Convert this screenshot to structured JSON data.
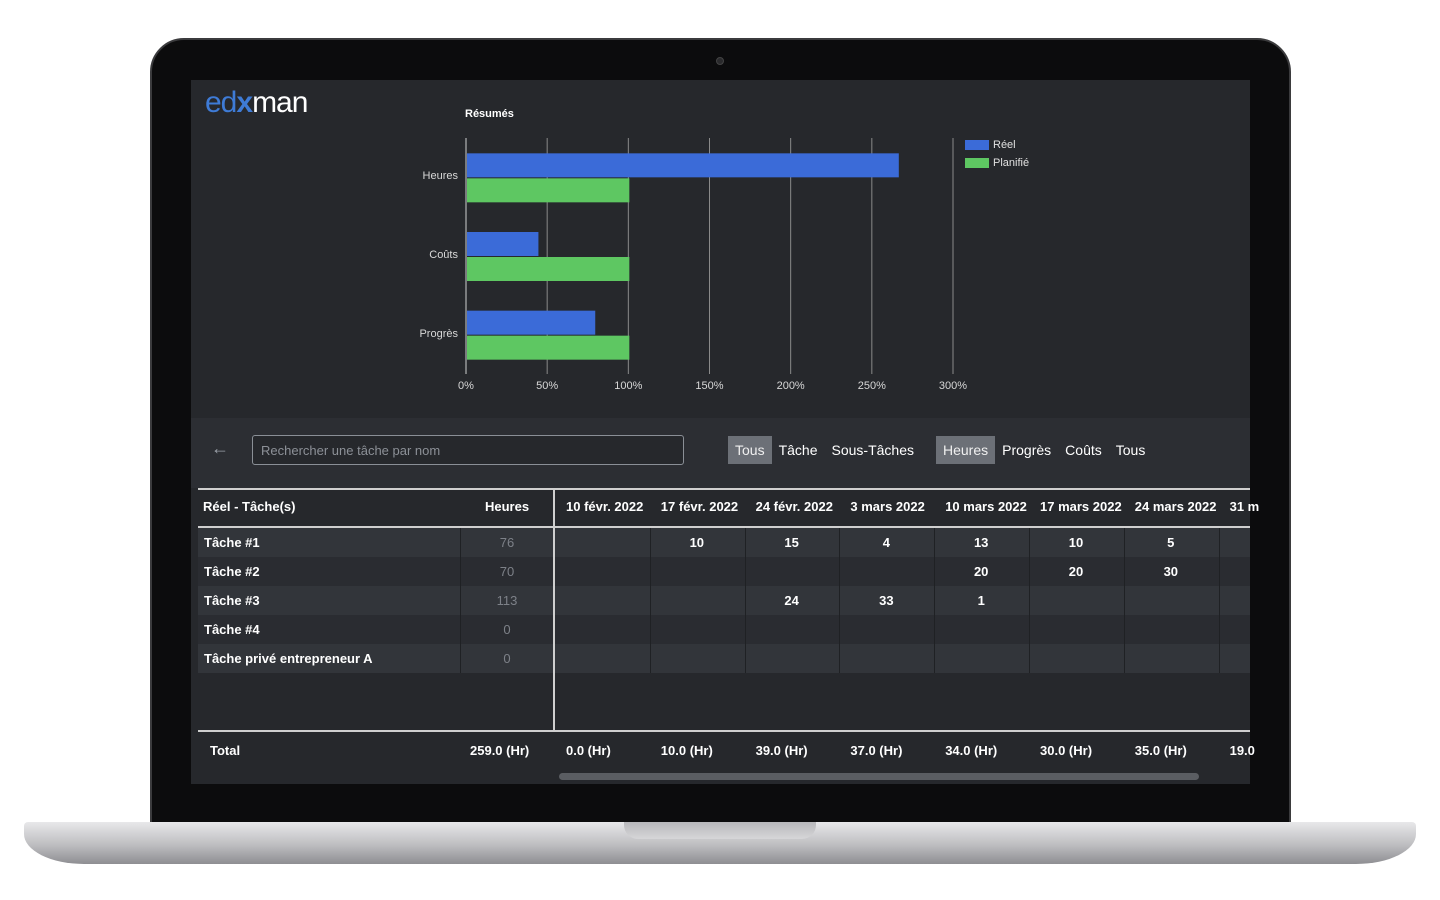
{
  "app": {
    "logo_prefix": "ed",
    "logo_mark": "x",
    "logo_suffix": "man"
  },
  "chart_data": {
    "type": "bar",
    "orientation": "horizontal",
    "title": "Résumés",
    "categories": [
      "Heures",
      "Coûts",
      "Progrès"
    ],
    "series": [
      {
        "name": "Réel",
        "color": "#3b6bd8",
        "values": [
          266,
          44,
          79
        ]
      },
      {
        "name": "Planifié",
        "color": "#5ec762",
        "values": [
          100,
          100,
          100
        ]
      }
    ],
    "xlim": [
      0,
      300
    ],
    "x_ticks": [
      "0%",
      "50%",
      "100%",
      "150%",
      "200%",
      "250%",
      "300%"
    ],
    "x_tick_values": [
      0,
      50,
      100,
      150,
      200,
      250,
      300
    ],
    "grid": "vertical",
    "legend": "top-right"
  },
  "toolbar": {
    "search_placeholder": "Rechercher une tâche par nom",
    "filter_type": [
      "Tous",
      "Tâche",
      "Sous-Tâches"
    ],
    "filter_type_active": "Tous",
    "filter_metric": [
      "Heures",
      "Progrès",
      "Coûts",
      "Tous"
    ],
    "filter_metric_active": "Heures"
  },
  "table": {
    "col_task": "Réel - Tâche(s)",
    "col_hours": "Heures",
    "dates": [
      "10 févr. 2022",
      "17 févr. 2022",
      "24 févr. 2022",
      "3 mars 2022",
      "10 mars 2022",
      "17 mars 2022",
      "24 mars 2022",
      "31 m"
    ],
    "rows": [
      {
        "name": "Tâche #1",
        "hours": "76",
        "values": [
          "",
          "10",
          "15",
          "4",
          "13",
          "10",
          "5",
          ""
        ]
      },
      {
        "name": "Tâche #2",
        "hours": "70",
        "values": [
          "",
          "",
          "",
          "",
          "20",
          "20",
          "30",
          ""
        ]
      },
      {
        "name": "Tâche #3",
        "hours": "113",
        "values": [
          "",
          "",
          "24",
          "33",
          "1",
          "",
          "",
          ""
        ]
      },
      {
        "name": "Tâche #4",
        "hours": "0",
        "values": [
          "",
          "",
          "",
          "",
          "",
          "",
          "",
          ""
        ]
      },
      {
        "name": "Tâche privé entrepreneur A",
        "hours": "0",
        "values": [
          "",
          "",
          "",
          "",
          "",
          "",
          "",
          ""
        ]
      }
    ],
    "total_label": "Total",
    "total_hours": "259.0 (Hr)",
    "totals": [
      "0.0 (Hr)",
      "10.0 (Hr)",
      "39.0 (Hr)",
      "37.0 (Hr)",
      "34.0 (Hr)",
      "30.0 (Hr)",
      "35.0 (Hr)",
      "19.0"
    ]
  }
}
